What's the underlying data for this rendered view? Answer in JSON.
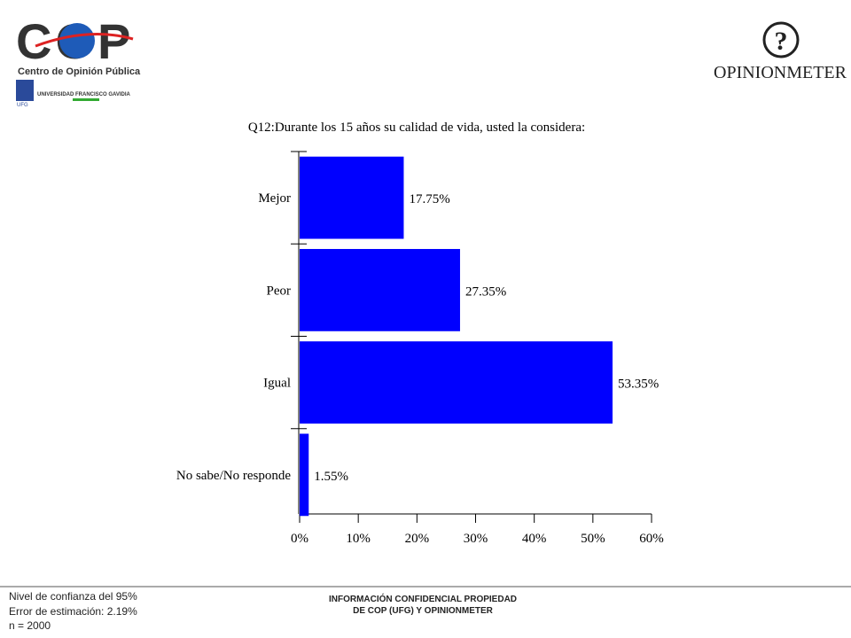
{
  "header": {
    "logo_left": "COP",
    "logo_left_caption": "Centro de Opinión Pública",
    "university": "UNIVERSIDAD FRANCISCO GAVIDIA",
    "university_short": "UFG",
    "logo_right": "OPINIONMETER"
  },
  "chart_data": {
    "type": "barh",
    "title": "Q12:Durante los 15 años su calidad de vida, usted la considera:",
    "categories": [
      "Mejor",
      "Peor",
      "Igual",
      "No sabe/No responde"
    ],
    "values": [
      17.75,
      27.35,
      53.35,
      1.55
    ],
    "value_labels": [
      "17.75%",
      "27.35%",
      "53.35%",
      "1.55%"
    ],
    "color": "#0000ff",
    "xlim": [
      0,
      60
    ],
    "xticks": [
      {
        "value": 0,
        "label": "0%"
      },
      {
        "value": 10,
        "label": "10%"
      },
      {
        "value": 20,
        "label": "20%"
      },
      {
        "value": 30,
        "label": "30%"
      },
      {
        "value": 40,
        "label": "40%"
      },
      {
        "value": 50,
        "label": "50%"
      },
      {
        "value": 60,
        "label": "60%"
      }
    ]
  },
  "footer": {
    "notes": [
      "Nivel de confianza del 95%",
      "Error de estimación: 2.19%",
      "n = 2000"
    ],
    "confidential": [
      "INFORMACIÓN CONFIDENCIAL PROPIEDAD",
      "DE COP (UFG) Y OPINIONMETER"
    ]
  }
}
